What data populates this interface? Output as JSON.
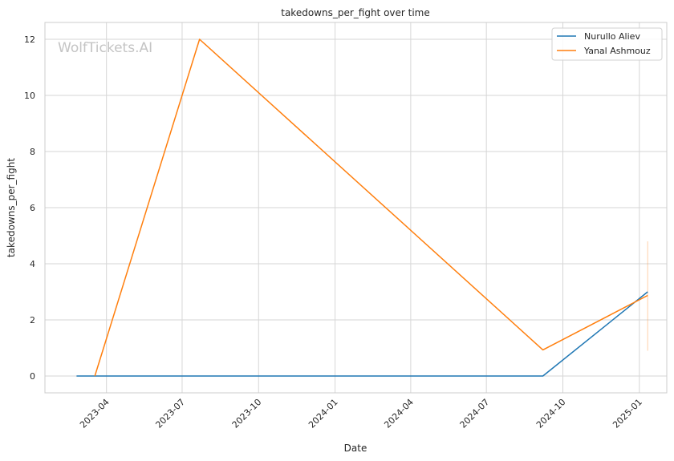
{
  "chart_data": {
    "type": "line",
    "title": "takedowns_per_fight over time",
    "xlabel": "Date",
    "ylabel": "takedowns_per_fight",
    "watermark": "WolfTickets.AI",
    "x_tick_labels": [
      "2023-04",
      "2023-07",
      "2023-10",
      "2024-01",
      "2024-04",
      "2024-07",
      "2024-10",
      "2025-01"
    ],
    "x_tick_dates": [
      "2023-04-01",
      "2023-07-01",
      "2023-10-01",
      "2024-01-01",
      "2024-04-01",
      "2024-07-01",
      "2024-10-01",
      "2025-01-01"
    ],
    "y_ticks": [
      0,
      2,
      4,
      6,
      8,
      10,
      12
    ],
    "xlim": [
      "2023-01-17",
      "2025-02-03"
    ],
    "ylim": [
      -0.6,
      12.6
    ],
    "grid": true,
    "legend_position": "top-right",
    "series": [
      {
        "name": "Nurullo Aliev",
        "color": "#1f77b4",
        "points": [
          {
            "x": "2023-02-24",
            "y": 0
          },
          {
            "x": "2024-09-07",
            "y": 0
          },
          {
            "x": "2025-01-11",
            "y": 3
          }
        ]
      },
      {
        "name": "Yanal Ashmouz",
        "color": "#ff7f0e",
        "points": [
          {
            "x": "2023-03-18",
            "y": 0
          },
          {
            "x": "2023-07-22",
            "y": 12
          },
          {
            "x": "2024-09-07",
            "y": 0.93
          },
          {
            "x": "2025-01-11",
            "y": 2.87
          }
        ]
      }
    ],
    "error_band": {
      "x": "2025-01-11",
      "y_low": 0.9,
      "y_high": 4.8,
      "color": "#ff7f0e"
    }
  }
}
